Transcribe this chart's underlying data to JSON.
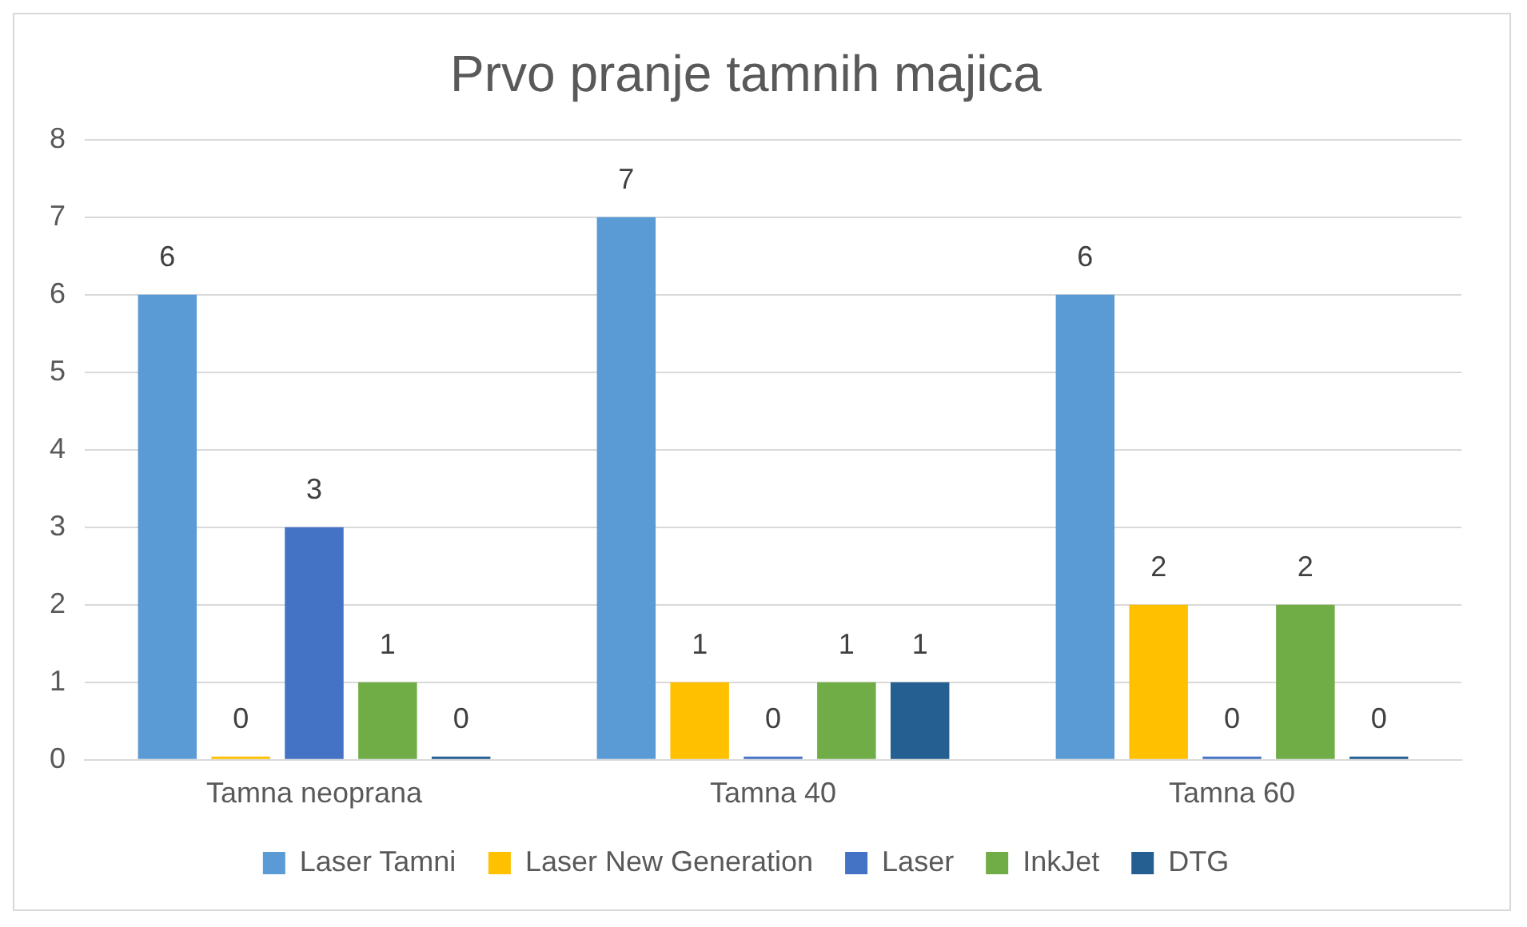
{
  "chart_data": {
    "type": "bar",
    "title": "Prvo pranje tamnih majica",
    "categories": [
      "Tamna neoprana",
      "Tamna 40",
      "Tamna 60"
    ],
    "series": [
      {
        "name": "Laser Tamni",
        "color": "#5b9bd5",
        "values": [
          6,
          7,
          6
        ]
      },
      {
        "name": "Laser New Generation",
        "color": "#ffc000",
        "values": [
          0,
          1,
          2
        ]
      },
      {
        "name": "Laser",
        "color": "#4472c4",
        "values": [
          3,
          0,
          0
        ]
      },
      {
        "name": "InkJet",
        "color": "#70ad47",
        "values": [
          1,
          1,
          2
        ]
      },
      {
        "name": "DTG",
        "color": "#255e91",
        "values": [
          0,
          1,
          0
        ]
      }
    ],
    "ylim": [
      0,
      8
    ],
    "yticks": [
      0,
      1,
      2,
      3,
      4,
      5,
      6,
      7,
      8
    ],
    "grid": "y",
    "legend": "bottom",
    "data_labels": true
  }
}
